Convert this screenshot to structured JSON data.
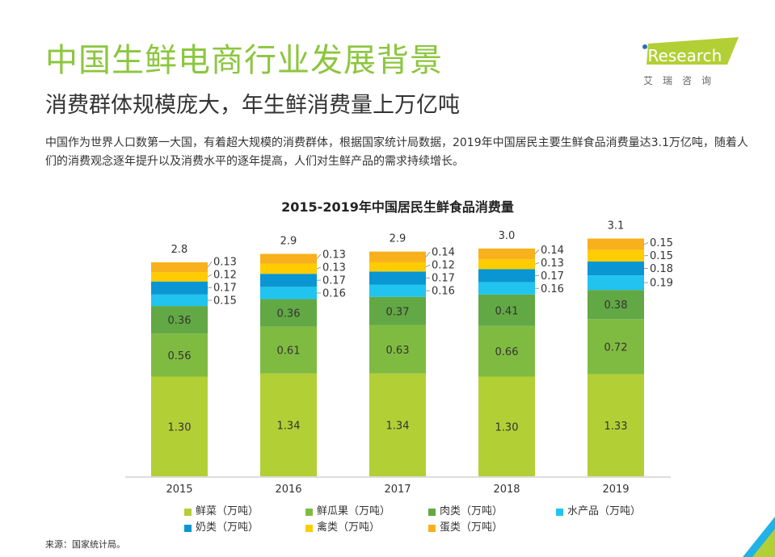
{
  "header": {
    "title": "中国生鲜电商行业发展背景",
    "subtitle": "消费群体规模庞大，年生鲜消费量上万亿吨",
    "description": "中国作为世界人口数第一大国，有着超大规模的消费群体，根据国家统计局数据，2019年中国居民主要生鲜食品消费量达3.1万亿吨，随着人们的消费观念逐年提升以及消费水平的逐年提高，人们对生鲜产品的需求持续增长。"
  },
  "logo": {
    "text": "iResearch",
    "subtext": "艾 瑞 咨 询",
    "color": "#b3cf36"
  },
  "footer": {
    "source": "来源：国家统计局。"
  },
  "chart_data": {
    "type": "bar",
    "stacked": true,
    "title": "2015-2019年中国居民生鲜食品消费量",
    "categories": [
      "2015",
      "2016",
      "2017",
      "2018",
      "2019"
    ],
    "totals": [
      "2.8",
      "2.9",
      "2.9",
      "3.0",
      "3.1"
    ],
    "series": [
      {
        "name": "鲜菜（万吨）",
        "color": "#b3cf36",
        "values": [
          1.3,
          1.34,
          1.34,
          1.3,
          1.33
        ]
      },
      {
        "name": "鲜瓜果（万吨）",
        "color": "#80bb41",
        "values": [
          0.56,
          0.61,
          0.63,
          0.66,
          0.72
        ]
      },
      {
        "name": "肉类（万吨）",
        "color": "#62a844",
        "values": [
          0.36,
          0.36,
          0.37,
          0.41,
          0.38
        ]
      },
      {
        "name": "水产品（万吨）",
        "color": "#20c4ef",
        "values": [
          0.15,
          0.16,
          0.16,
          0.16,
          0.19
        ]
      },
      {
        "name": "奶类（万吨）",
        "color": "#0a96d2",
        "values": [
          0.17,
          0.17,
          0.17,
          0.17,
          0.18
        ]
      },
      {
        "name": "禽类（万吨）",
        "color": "#ffcc00",
        "values": [
          0.12,
          0.13,
          0.12,
          0.13,
          0.15
        ]
      },
      {
        "name": "蛋类（万吨）",
        "color": "#f8b11c",
        "values": [
          0.13,
          0.13,
          0.14,
          0.14,
          0.15
        ]
      }
    ],
    "legend": "bottom",
    "grid": false
  }
}
